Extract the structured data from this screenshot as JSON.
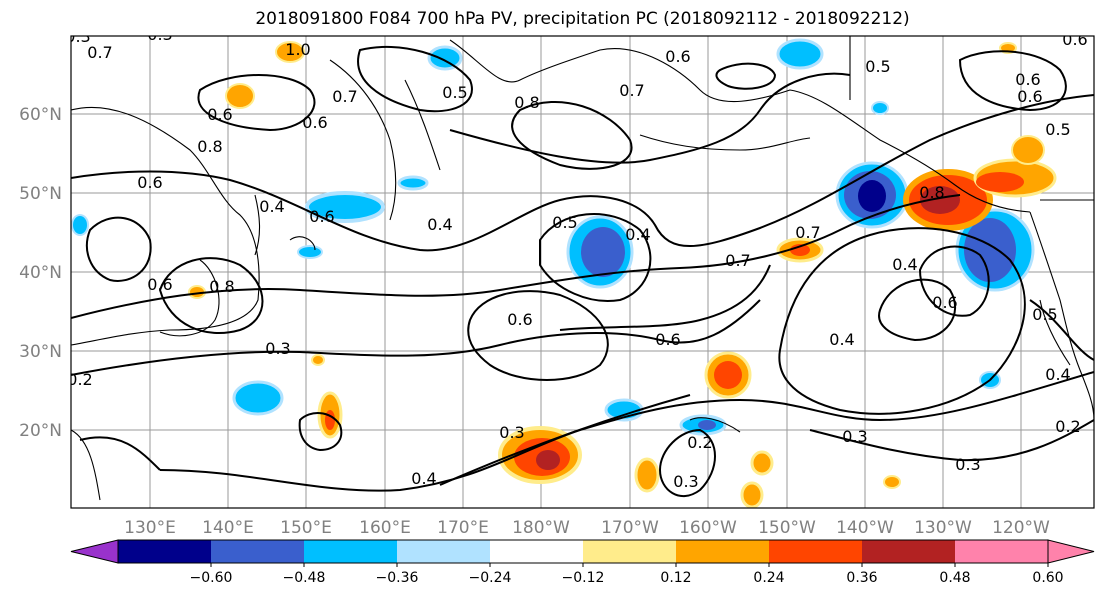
{
  "title": "2018091800 F084 700 hPa PV, precipitation PC (2018092112 - 2018092212)",
  "map": {
    "lon_labels": [
      "130°E",
      "140°E",
      "150°E",
      "160°E",
      "170°E",
      "180°W",
      "170°W",
      "160°W",
      "150°W",
      "140°W",
      "130°W",
      "120°W"
    ],
    "lat_labels": [
      "60°N",
      "50°N",
      "40°N",
      "30°N",
      "20°N"
    ]
  },
  "colorbar": {
    "labels": [
      "−0.60",
      "−0.48",
      "−0.36",
      "−0.24",
      "−0.12",
      "0.12",
      "0.24",
      "0.36",
      "0.48",
      "0.60"
    ],
    "colors": [
      "#9932CC",
      "#00008B",
      "#3A5FCD",
      "#00BFFF",
      "#B0E2FF",
      "#FFFFFF",
      "#FFEC8B",
      "#FFA500",
      "#FF4500",
      "#B22222",
      "#FF82AB"
    ]
  },
  "contour_labels": [
    "0.7",
    "1.0",
    "0.6",
    "0.7",
    "0.8",
    "0.5",
    "0.6",
    "0.8",
    "0.5",
    "0.7",
    "0.6",
    "0.5",
    "0.6",
    "0.8",
    "0.6",
    "0.4",
    "0.6",
    "0.5",
    "0.4",
    "0.7",
    "0.7",
    "0.8",
    "0.4",
    "0.5",
    "0.6",
    "0.6",
    "0.3",
    "0.6",
    "0.4",
    "0.6",
    "0.3",
    "0.4",
    "0.2",
    "0.3",
    "0.3",
    "0.2",
    "0.3",
    "0.4",
    "0.2",
    "0.3",
    "0.6",
    "0.6",
    "0.3",
    "0.4"
  ]
}
